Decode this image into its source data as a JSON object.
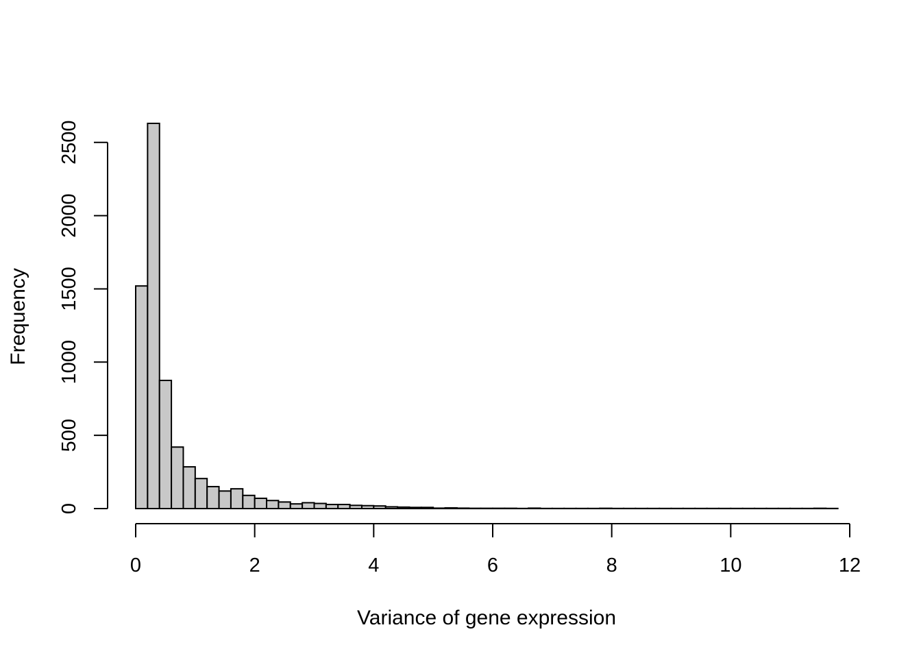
{
  "chart_data": {
    "type": "bar",
    "subtype": "histogram",
    "xlabel": "Variance of gene expression",
    "ylabel": "Frequency",
    "bin_width": 0.2,
    "bin_start": 0,
    "values": [
      1520,
      2630,
      875,
      420,
      285,
      205,
      150,
      120,
      135,
      90,
      70,
      55,
      45,
      32,
      40,
      35,
      28,
      28,
      22,
      20,
      18,
      12,
      10,
      8,
      8,
      3,
      5,
      3,
      2,
      2,
      2,
      2,
      1,
      3,
      1,
      1,
      1,
      1,
      1,
      2,
      1,
      1,
      1,
      1,
      1,
      1,
      1,
      1,
      1,
      1,
      1,
      1,
      1,
      1,
      1,
      1,
      1,
      2,
      1
    ],
    "xlim": [
      0,
      12
    ],
    "ylim": [
      0,
      2630
    ],
    "x_ticks": [
      "0",
      "2",
      "4",
      "6",
      "8",
      "10",
      "12"
    ],
    "y_ticks": [
      "0",
      "500",
      "1000",
      "1500",
      "2000",
      "2500"
    ],
    "bar_color": "#c8c8c8",
    "grid": false
  }
}
